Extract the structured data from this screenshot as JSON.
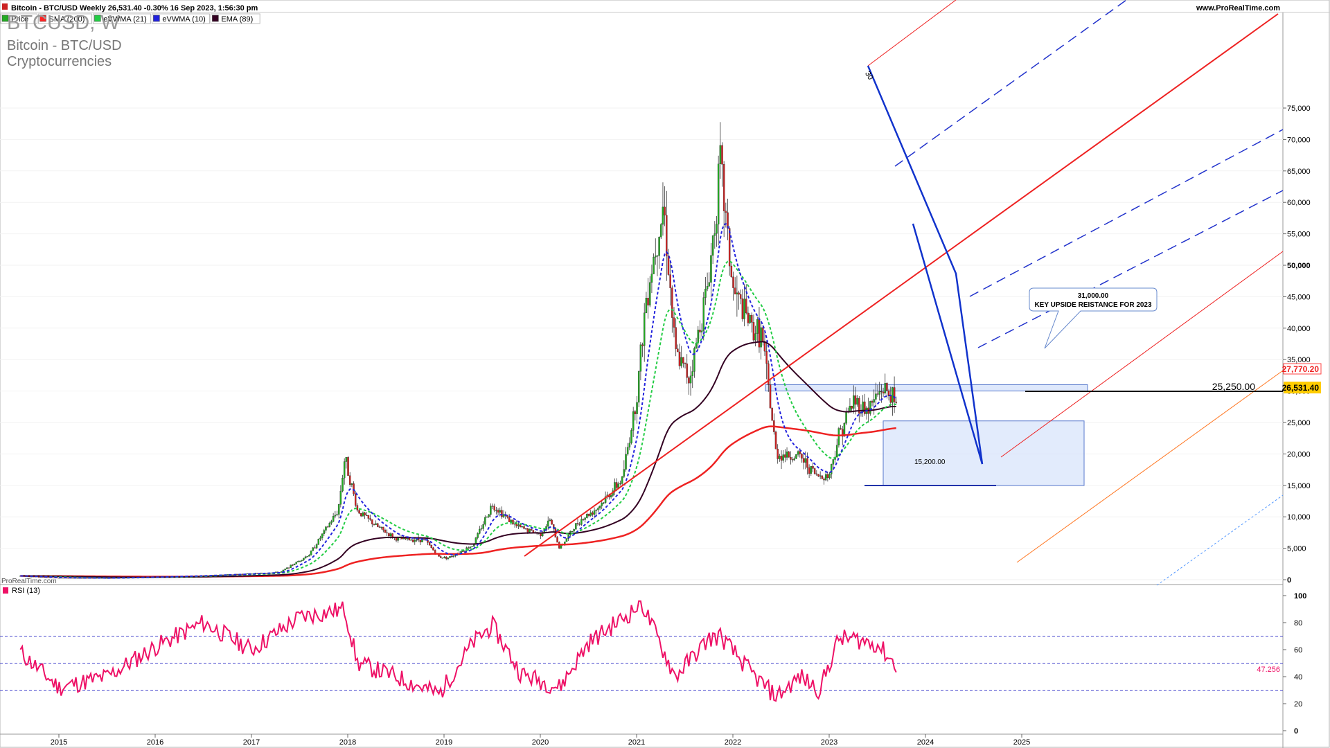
{
  "header": {
    "title_line": "Bitcoin - BTC/USD Weekly 26,531.40 -0.30% 16 Sep 2023, 1:56:30 pm",
    "site": "www.ProRealTime.com",
    "watermark": "ProRealTime.com"
  },
  "legend": [
    {
      "label": "Price",
      "color": "#22aa22"
    },
    {
      "label": "SMA (200)",
      "color": "#ff2222"
    },
    {
      "label": "eVWMA (21)",
      "color": "#22cc44"
    },
    {
      "label": "eVWMA (10)",
      "color": "#2222dd"
    },
    {
      "label": "EMA (89)",
      "color": "#330022"
    }
  ],
  "instrument": {
    "symbol": "BTCUSD, W",
    "name": "Bitcoin - BTC/USD",
    "category": "Cryptocurrencies"
  },
  "annotations": {
    "callout_value": "31,000.00",
    "callout_text": "KEY UPSIDE REISTANCE FOR 2023",
    "low_label": "15,200.00",
    "support_label": "25,250.00",
    "wave_label": "30"
  },
  "price_tags": {
    "sma": "27,770.20",
    "last": "26,531.40"
  },
  "rsi": {
    "label": "RSI (13)",
    "last": "47.256",
    "color": "#ee1166"
  },
  "chart_data": {
    "type": "candlestick",
    "xlabel": "",
    "ylabel": "",
    "x_ticks": [
      "2015",
      "2016",
      "2017",
      "2018",
      "2019",
      "2020",
      "2021",
      "2022",
      "2023",
      "2024",
      "2025"
    ],
    "y_ticks": [
      "0",
      "5,000",
      "10,000",
      "15,000",
      "20,000",
      "25,000",
      "30,000",
      "35,000",
      "40,000",
      "45,000",
      "50,000",
      "55,000",
      "60,000",
      "65,000",
      "70,000",
      "75,000"
    ],
    "ylim": [
      0,
      76000
    ],
    "price_path": [
      [
        "2014.6",
        600
      ],
      [
        "2015.0",
        300
      ],
      [
        "2015.5",
        260
      ],
      [
        "2016.0",
        430
      ],
      [
        "2016.5",
        650
      ],
      [
        "2017.0",
        960
      ],
      [
        "2017.3",
        1200
      ],
      [
        "2017.6",
        4000
      ],
      [
        "2017.9",
        11000
      ],
      [
        "2017.97",
        19500
      ],
      [
        "2018.1",
        11000
      ],
      [
        "2018.3",
        8500
      ],
      [
        "2018.5",
        6500
      ],
      [
        "2018.8",
        6300
      ],
      [
        "2018.95",
        3600
      ],
      [
        "2019.05",
        3500
      ],
      [
        "2019.3",
        5500
      ],
      [
        "2019.5",
        12000
      ],
      [
        "2019.75",
        8500
      ],
      [
        "2020.0",
        7200
      ],
      [
        "2020.1",
        9500
      ],
      [
        "2020.2",
        5000
      ],
      [
        "2020.4",
        9300
      ],
      [
        "2020.6",
        11500
      ],
      [
        "2020.85",
        16000
      ],
      [
        "2021.0",
        29000
      ],
      [
        "2021.1",
        45000
      ],
      [
        "2021.28",
        60000
      ],
      [
        "2021.4",
        36000
      ],
      [
        "2021.55",
        32000
      ],
      [
        "2021.75",
        48000
      ],
      [
        "2021.87",
        66000
      ],
      [
        "2022.0",
        46000
      ],
      [
        "2022.2",
        40000
      ],
      [
        "2022.3",
        39000
      ],
      [
        "2022.45",
        20000
      ],
      [
        "2022.7",
        19500
      ],
      [
        "2022.87",
        16500
      ],
      [
        "2023.0",
        16600
      ],
      [
        "2023.1",
        23000
      ],
      [
        "2023.25",
        28500
      ],
      [
        "2023.4",
        27000
      ],
      [
        "2023.55",
        30500
      ],
      [
        "2023.65",
        29200
      ],
      [
        "2023.71",
        26531.4
      ]
    ],
    "series": [
      {
        "name": "Price",
        "type": "candlestick"
      },
      {
        "name": "SMA (200)",
        "type": "line",
        "last": 27770.2
      },
      {
        "name": "eVWMA (21)",
        "type": "line"
      },
      {
        "name": "eVWMA (10)",
        "type": "line"
      },
      {
        "name": "EMA (89)",
        "type": "line"
      }
    ],
    "levels": [
      {
        "label": "25,250.00",
        "value": 25250
      },
      {
        "label": "15,200.00",
        "value": 15200
      },
      {
        "label": "31,000.00",
        "value": 31000
      }
    ],
    "rsi_panel": {
      "y_ticks": [
        "0",
        "20",
        "40",
        "60",
        "80",
        "100"
      ],
      "ylim": [
        0,
        100
      ],
      "bands": [
        30,
        50,
        70
      ],
      "path": [
        [
          "2014.6",
          58
        ],
        [
          "2015.0",
          32
        ],
        [
          "2015.5",
          40
        ],
        [
          "2016.0",
          62
        ],
        [
          "2016.5",
          80
        ],
        [
          "2017.0",
          60
        ],
        [
          "2017.5",
          84
        ],
        [
          "2017.97",
          90
        ],
        [
          "2018.1",
          50
        ],
        [
          "2018.5",
          40
        ],
        [
          "2018.95",
          27
        ],
        [
          "2019.3",
          65
        ],
        [
          "2019.5",
          78
        ],
        [
          "2019.8",
          42
        ],
        [
          "2020.2",
          32
        ],
        [
          "2020.5",
          65
        ],
        [
          "2020.95",
          88
        ],
        [
          "2021.05",
          95
        ],
        [
          "2021.4",
          40
        ],
        [
          "2021.75",
          68
        ],
        [
          "2021.87",
          70
        ],
        [
          "2022.2",
          42
        ],
        [
          "2022.45",
          25
        ],
        [
          "2022.7",
          40
        ],
        [
          "2022.9",
          30
        ],
        [
          "2023.1",
          68
        ],
        [
          "2023.25",
          68
        ],
        [
          "2023.5",
          64
        ],
        [
          "2023.71",
          47.256
        ]
      ]
    }
  }
}
